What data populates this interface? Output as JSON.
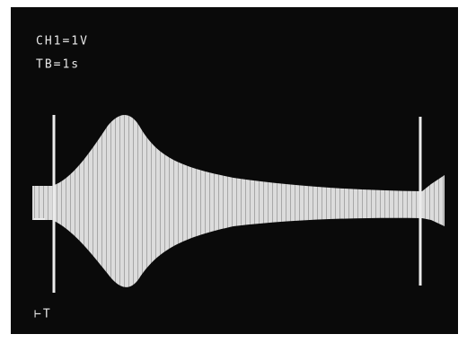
{
  "screen": {
    "labels": [
      "CH1=1V",
      "TB=1s"
    ],
    "cursor_label": "⊢T"
  }
}
